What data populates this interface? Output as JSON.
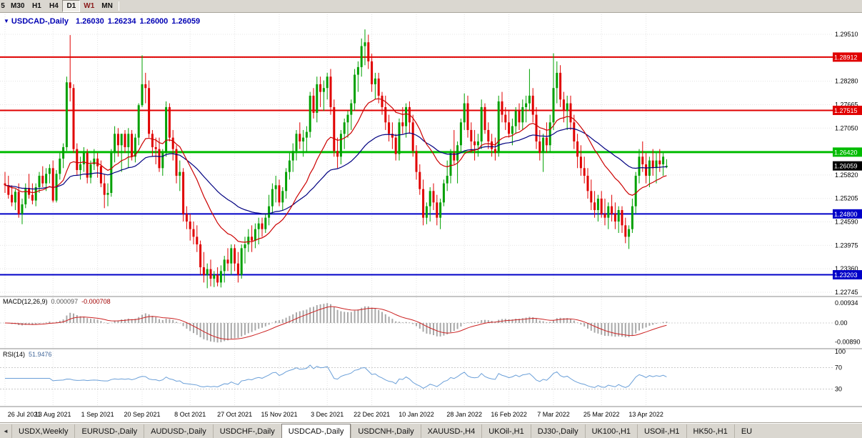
{
  "toolbar": {
    "timeframes": [
      {
        "label": "5",
        "active": false,
        "color": "#111111"
      },
      {
        "label": "M30",
        "active": false,
        "color": "#111111"
      },
      {
        "label": "H1",
        "active": false,
        "color": "#111111"
      },
      {
        "label": "H4",
        "active": false,
        "color": "#111111"
      },
      {
        "label": "D1",
        "active": true,
        "color": "#111111"
      },
      {
        "label": "W1",
        "active": false,
        "color": "#8b1a1a"
      },
      {
        "label": "MN",
        "active": false,
        "color": "#111111"
      }
    ]
  },
  "chart": {
    "header": {
      "marker": "▼",
      "title": "USDCAD-,Daily",
      "open": "1.26030",
      "high": "1.26234",
      "low": "1.26000",
      "close": "1.26059"
    }
  },
  "chart_data": {
    "type": "candlestick",
    "symbol": "USDCAD",
    "timeframe": "Daily",
    "title": "USDCAD-,Daily",
    "bull_color": "#00a000",
    "bear_color": "#e00000",
    "ma_fast_period": 20,
    "ma_slow_period": 50,
    "ma_fast_color": "#cc0000",
    "ma_slow_color": "#000080",
    "grid_color": "#e4e4e4",
    "price_axis_labels": [
      "1.29510",
      "1.28895",
      "1.28280",
      "1.27665",
      "1.27050",
      "1.26435",
      "1.25820",
      "1.25205",
      "1.24590",
      "1.23975",
      "1.23360",
      "1.22745"
    ],
    "price_axis_values": [
      1.2951,
      1.28895,
      1.2828,
      1.27665,
      1.2705,
      1.26435,
      1.2582,
      1.25205,
      1.2459,
      1.23975,
      1.2336,
      1.22745
    ],
    "hlines": [
      {
        "price": 1.28912,
        "label": "1.28912",
        "color": "#e00000",
        "width": 2
      },
      {
        "price": 1.27515,
        "label": "1.27515",
        "color": "#e00000",
        "width": 2
      },
      {
        "price": 1.2642,
        "label": "1.26420",
        "color": "#00bb00",
        "width": 3
      },
      {
        "price": 1.248,
        "label": "1.24800",
        "color": "#0000c8",
        "width": 2
      },
      {
        "price": 1.23203,
        "label": "1.23203",
        "color": "#0000c8",
        "width": 2
      }
    ],
    "current_price": {
      "price": 1.26059,
      "label": "1.26059",
      "bg": "#000000"
    },
    "date_labels": [
      {
        "text": "26 Jul 2021",
        "i": 0
      },
      {
        "text": "13 Aug 2021",
        "i": 14
      },
      {
        "text": "1 Sep 2021",
        "i": 27
      },
      {
        "text": "20 Sep 2021",
        "i": 40
      },
      {
        "text": "8 Oct 2021",
        "i": 54
      },
      {
        "text": "27 Oct 2021",
        "i": 67
      },
      {
        "text": "15 Nov 2021",
        "i": 80
      },
      {
        "text": "3 Dec 2021",
        "i": 94
      },
      {
        "text": "22 Dec 2021",
        "i": 107
      },
      {
        "text": "10 Jan 2022",
        "i": 120
      },
      {
        "text": "28 Jan 2022",
        "i": 134
      },
      {
        "text": "16 Feb 2022",
        "i": 147
      },
      {
        "text": "7 Mar 2022",
        "i": 160
      },
      {
        "text": "25 Mar 2022",
        "i": 174
      },
      {
        "text": "13 Apr 2022",
        "i": 187
      }
    ],
    "macd": {
      "label": "MACD(12,26,9)",
      "value_main": "0.000097",
      "value_signal": "-0.000708",
      "params": [
        12,
        26,
        9
      ],
      "axis_labels": [
        "0.00934",
        "0.00",
        "-0.00890"
      ],
      "axis_values": [
        0.00934,
        0,
        -0.0089
      ],
      "hist_color": "#a8a8a8",
      "signal_color": "#cc2222"
    },
    "rsi": {
      "label": "RSI(14)",
      "value": "51.9476",
      "period": 14,
      "levels": [
        70,
        30
      ],
      "axis_labels": [
        "100",
        "70",
        "30"
      ],
      "axis_values": [
        100,
        70,
        30
      ],
      "line_color": "#6a9fd8"
    },
    "candles": [
      [
        1.256,
        1.259,
        1.2535,
        1.2555
      ],
      [
        1.2555,
        1.258,
        1.252,
        1.253
      ],
      [
        1.253,
        1.2555,
        1.25,
        1.251
      ],
      [
        1.251,
        1.2545,
        1.249,
        1.2538
      ],
      [
        1.2538,
        1.256,
        1.247,
        1.248
      ],
      [
        1.248,
        1.252,
        1.2453,
        1.2505
      ],
      [
        1.2505,
        1.256,
        1.2495,
        1.2548
      ],
      [
        1.2548,
        1.2585,
        1.252,
        1.253
      ],
      [
        1.253,
        1.256,
        1.2505,
        1.2515
      ],
      [
        1.2515,
        1.256,
        1.25,
        1.255
      ],
      [
        1.255,
        1.259,
        1.2535,
        1.258
      ],
      [
        1.258,
        1.2605,
        1.255,
        1.256
      ],
      [
        1.256,
        1.26,
        1.254,
        1.2585
      ],
      [
        1.2585,
        1.261,
        1.256,
        1.26
      ],
      [
        1.26,
        1.262,
        1.251,
        1.2515
      ],
      [
        1.2515,
        1.2595,
        1.251,
        1.2585
      ],
      [
        1.2585,
        1.264,
        1.257,
        1.2625
      ],
      [
        1.2625,
        1.2665,
        1.26,
        1.2655
      ],
      [
        1.2655,
        1.284,
        1.2645,
        1.2825
      ],
      [
        1.2825,
        1.2949,
        1.2775,
        1.281
      ],
      [
        1.281,
        1.282,
        1.264,
        1.265
      ],
      [
        1.265,
        1.2665,
        1.258,
        1.2595
      ],
      [
        1.2595,
        1.263,
        1.257,
        1.261
      ],
      [
        1.261,
        1.2655,
        1.259,
        1.264
      ],
      [
        1.264,
        1.265,
        1.256,
        1.2575
      ],
      [
        1.2575,
        1.262,
        1.256,
        1.261
      ],
      [
        1.261,
        1.265,
        1.2595,
        1.2625
      ],
      [
        1.2625,
        1.264,
        1.2575,
        1.2605
      ],
      [
        1.2605,
        1.262,
        1.255,
        1.256
      ],
      [
        1.256,
        1.2585,
        1.2495,
        1.253
      ],
      [
        1.253,
        1.256,
        1.25,
        1.2535
      ],
      [
        1.2535,
        1.265,
        1.2525,
        1.264
      ],
      [
        1.264,
        1.271,
        1.2615,
        1.269
      ],
      [
        1.269,
        1.2705,
        1.263,
        1.266
      ],
      [
        1.266,
        1.269,
        1.259,
        1.269
      ],
      [
        1.269,
        1.27,
        1.264,
        1.2655
      ],
      [
        1.2655,
        1.2705,
        1.26,
        1.269
      ],
      [
        1.269,
        1.27,
        1.262,
        1.263
      ],
      [
        1.263,
        1.269,
        1.2615,
        1.268
      ],
      [
        1.268,
        1.277,
        1.266,
        1.2765
      ],
      [
        1.2765,
        1.2896,
        1.276,
        1.282
      ],
      [
        1.282,
        1.285,
        1.277,
        1.281
      ],
      [
        1.281,
        1.283,
        1.268,
        1.269
      ],
      [
        1.269,
        1.27,
        1.263,
        1.2655
      ],
      [
        1.2655,
        1.268,
        1.261,
        1.265
      ],
      [
        1.265,
        1.268,
        1.259,
        1.26
      ],
      [
        1.26,
        1.265,
        1.258,
        1.264
      ],
      [
        1.264,
        1.2775,
        1.263,
        1.276
      ],
      [
        1.276,
        1.277,
        1.267,
        1.268
      ],
      [
        1.268,
        1.27,
        1.262,
        1.265
      ],
      [
        1.265,
        1.266,
        1.256,
        1.258
      ],
      [
        1.258,
        1.262,
        1.254,
        1.259
      ],
      [
        1.259,
        1.26,
        1.246,
        1.248
      ],
      [
        1.248,
        1.25,
        1.244,
        1.246
      ],
      [
        1.246,
        1.248,
        1.241,
        1.244
      ],
      [
        1.244,
        1.246,
        1.24,
        1.242
      ],
      [
        1.242,
        1.245,
        1.238,
        1.24
      ],
      [
        1.24,
        1.241,
        1.232,
        1.234
      ],
      [
        1.234,
        1.238,
        1.23,
        1.232
      ],
      [
        1.232,
        1.235,
        1.2285,
        1.2335
      ],
      [
        1.2335,
        1.236,
        1.229,
        1.231
      ],
      [
        1.231,
        1.233,
        1.2288,
        1.232
      ],
      [
        1.232,
        1.234,
        1.229,
        1.23
      ],
      [
        1.23,
        1.2345,
        1.2287,
        1.233
      ],
      [
        1.233,
        1.237,
        1.23,
        1.236
      ],
      [
        1.236,
        1.239,
        1.233,
        1.235
      ],
      [
        1.235,
        1.24,
        1.232,
        1.239
      ],
      [
        1.239,
        1.24,
        1.233,
        1.235
      ],
      [
        1.235,
        1.238,
        1.23,
        1.232
      ],
      [
        1.232,
        1.24,
        1.231,
        1.239
      ],
      [
        1.239,
        1.242,
        1.235,
        1.24
      ],
      [
        1.24,
        1.244,
        1.238,
        1.242
      ],
      [
        1.242,
        1.245,
        1.238,
        1.241
      ],
      [
        1.241,
        1.2455,
        1.239,
        1.244
      ],
      [
        1.244,
        1.247,
        1.24,
        1.2455
      ],
      [
        1.2455,
        1.247,
        1.242,
        1.244
      ],
      [
        1.244,
        1.248,
        1.243,
        1.247
      ],
      [
        1.247,
        1.253,
        1.245,
        1.25
      ],
      [
        1.25,
        1.256,
        1.248,
        1.2545
      ],
      [
        1.2545,
        1.258,
        1.251,
        1.2555
      ],
      [
        1.2555,
        1.257,
        1.25,
        1.251
      ],
      [
        1.251,
        1.255,
        1.249,
        1.254
      ],
      [
        1.254,
        1.26,
        1.252,
        1.259
      ],
      [
        1.259,
        1.264,
        1.257,
        1.262
      ],
      [
        1.262,
        1.2665,
        1.259,
        1.2645
      ],
      [
        1.2645,
        1.27,
        1.262,
        1.269
      ],
      [
        1.269,
        1.272,
        1.265,
        1.267
      ],
      [
        1.267,
        1.27,
        1.263,
        1.268
      ],
      [
        1.268,
        1.271,
        1.264,
        1.2695
      ],
      [
        1.2695,
        1.28,
        1.268,
        1.279
      ],
      [
        1.279,
        1.281,
        1.273,
        1.2745
      ],
      [
        1.2745,
        1.284,
        1.272,
        1.282
      ],
      [
        1.282,
        1.284,
        1.276,
        1.28
      ],
      [
        1.28,
        1.283,
        1.275,
        1.281
      ],
      [
        1.281,
        1.285,
        1.278,
        1.284
      ],
      [
        1.284,
        1.286,
        1.274,
        1.276
      ],
      [
        1.276,
        1.278,
        1.263,
        1.2645
      ],
      [
        1.2645,
        1.268,
        1.26,
        1.263
      ],
      [
        1.263,
        1.27,
        1.261,
        1.269
      ],
      [
        1.269,
        1.273,
        1.265,
        1.272
      ],
      [
        1.272,
        1.275,
        1.268,
        1.274
      ],
      [
        1.274,
        1.278,
        1.27,
        1.277
      ],
      [
        1.277,
        1.286,
        1.275,
        1.2845
      ],
      [
        1.2845,
        1.288,
        1.28,
        1.2865
      ],
      [
        1.2865,
        1.294,
        1.284,
        1.292
      ],
      [
        1.292,
        1.2964,
        1.287,
        1.293
      ],
      [
        1.293,
        1.295,
        1.286,
        1.288
      ],
      [
        1.288,
        1.29,
        1.28,
        1.282
      ],
      [
        1.282,
        1.285,
        1.278,
        1.2835
      ],
      [
        1.2835,
        1.285,
        1.277,
        1.279
      ],
      [
        1.279,
        1.28,
        1.274,
        1.276
      ],
      [
        1.276,
        1.279,
        1.27,
        1.272
      ],
      [
        1.272,
        1.274,
        1.267,
        1.269
      ],
      [
        1.269,
        1.272,
        1.265,
        1.268
      ],
      [
        1.268,
        1.269,
        1.262,
        1.2637
      ],
      [
        1.2637,
        1.273,
        1.262,
        1.272
      ],
      [
        1.272,
        1.276,
        1.269,
        1.271
      ],
      [
        1.271,
        1.277,
        1.268,
        1.276
      ],
      [
        1.276,
        1.2775,
        1.269,
        1.272
      ],
      [
        1.272,
        1.274,
        1.263,
        1.2645
      ],
      [
        1.2645,
        1.266,
        1.257,
        1.259
      ],
      [
        1.259,
        1.261,
        1.253,
        1.2545
      ],
      [
        1.2545,
        1.257,
        1.245,
        1.247
      ],
      [
        1.247,
        1.251,
        1.2453,
        1.25
      ],
      [
        1.25,
        1.255,
        1.246,
        1.254
      ],
      [
        1.254,
        1.256,
        1.249,
        1.251
      ],
      [
        1.251,
        1.253,
        1.245,
        1.247
      ],
      [
        1.247,
        1.252,
        1.244,
        1.251
      ],
      [
        1.251,
        1.257,
        1.25,
        1.256
      ],
      [
        1.256,
        1.262,
        1.254,
        1.258
      ],
      [
        1.258,
        1.265,
        1.256,
        1.264
      ],
      [
        1.264,
        1.27,
        1.261,
        1.262
      ],
      [
        1.262,
        1.267,
        1.256,
        1.266
      ],
      [
        1.266,
        1.273,
        1.264,
        1.272
      ],
      [
        1.272,
        1.2796,
        1.27,
        1.277
      ],
      [
        1.277,
        1.279,
        1.268,
        1.27
      ],
      [
        1.27,
        1.272,
        1.264,
        1.267
      ],
      [
        1.267,
        1.27,
        1.262,
        1.266
      ],
      [
        1.266,
        1.269,
        1.263,
        1.267
      ],
      [
        1.267,
        1.278,
        1.265,
        1.276
      ],
      [
        1.276,
        1.277,
        1.269,
        1.27
      ],
      [
        1.27,
        1.272,
        1.265,
        1.267
      ],
      [
        1.267,
        1.269,
        1.263,
        1.265
      ],
      [
        1.265,
        1.268,
        1.262,
        1.264
      ],
      [
        1.264,
        1.279,
        1.263,
        1.2775
      ],
      [
        1.2775,
        1.28,
        1.272,
        1.274
      ],
      [
        1.274,
        1.276,
        1.27,
        1.272
      ],
      [
        1.272,
        1.275,
        1.268,
        1.269
      ],
      [
        1.269,
        1.273,
        1.266,
        1.271
      ],
      [
        1.271,
        1.276,
        1.269,
        1.275
      ],
      [
        1.275,
        1.277,
        1.27,
        1.272
      ],
      [
        1.272,
        1.278,
        1.27,
        1.276
      ],
      [
        1.276,
        1.279,
        1.272,
        1.277
      ],
      [
        1.277,
        1.286,
        1.275,
        1.279
      ],
      [
        1.279,
        1.281,
        1.272,
        1.274
      ],
      [
        1.274,
        1.276,
        1.265,
        1.267
      ],
      [
        1.267,
        1.27,
        1.262,
        1.264
      ],
      [
        1.264,
        1.269,
        1.259,
        1.268
      ],
      [
        1.268,
        1.272,
        1.264,
        1.266
      ],
      [
        1.266,
        1.274,
        1.264,
        1.272
      ],
      [
        1.272,
        1.2901,
        1.27,
        1.281
      ],
      [
        1.281,
        1.288,
        1.277,
        1.285
      ],
      [
        1.285,
        1.287,
        1.276,
        1.278
      ],
      [
        1.278,
        1.28,
        1.272,
        1.275
      ],
      [
        1.275,
        1.279,
        1.27,
        1.277
      ],
      [
        1.277,
        1.279,
        1.27,
        1.272
      ],
      [
        1.272,
        1.274,
        1.265,
        1.267
      ],
      [
        1.267,
        1.269,
        1.26,
        1.263
      ],
      [
        1.263,
        1.266,
        1.258,
        1.26
      ],
      [
        1.26,
        1.263,
        1.256,
        1.258
      ],
      [
        1.258,
        1.26,
        1.252,
        1.254
      ],
      [
        1.254,
        1.257,
        1.249,
        1.251
      ],
      [
        1.251,
        1.254,
        1.247,
        1.249
      ],
      [
        1.249,
        1.253,
        1.246,
        1.252
      ],
      [
        1.252,
        1.254,
        1.247,
        1.248
      ],
      [
        1.248,
        1.252,
        1.245,
        1.247
      ],
      [
        1.247,
        1.251,
        1.244,
        1.25
      ],
      [
        1.25,
        1.253,
        1.246,
        1.248
      ],
      [
        1.248,
        1.251,
        1.244,
        1.246
      ],
      [
        1.246,
        1.25,
        1.243,
        1.249
      ],
      [
        1.249,
        1.25,
        1.243,
        1.245
      ],
      [
        1.245,
        1.247,
        1.2403,
        1.242
      ],
      [
        1.242,
        1.245,
        1.2388,
        1.244
      ],
      [
        1.244,
        1.252,
        1.243,
        1.25
      ],
      [
        1.25,
        1.259,
        1.248,
        1.258
      ],
      [
        1.258,
        1.265,
        1.256,
        1.263
      ],
      [
        1.263,
        1.267,
        1.259,
        1.261
      ],
      [
        1.261,
        1.264,
        1.256,
        1.258
      ],
      [
        1.258,
        1.263,
        1.255,
        1.262
      ],
      [
        1.262,
        1.265,
        1.258,
        1.26
      ],
      [
        1.26,
        1.264,
        1.256,
        1.262
      ],
      [
        1.262,
        1.265,
        1.259,
        1.261
      ],
      [
        1.261,
        1.264,
        1.258,
        1.263
      ],
      [
        1.2603,
        1.26234,
        1.26,
        1.26059
      ]
    ]
  },
  "tabbar": {
    "scroll_left": "◄",
    "active_index": 4,
    "tabs": [
      {
        "label": "USDX,Weekly"
      },
      {
        "label": "EURUSD-,Daily"
      },
      {
        "label": "AUDUSD-,Daily"
      },
      {
        "label": "USDCHF-,Daily"
      },
      {
        "label": "USDCAD-,Daily"
      },
      {
        "label": "USDCNH-,Daily"
      },
      {
        "label": "XAUUSD-,H4"
      },
      {
        "label": "UKOil-,H1"
      },
      {
        "label": "DJ30-,Daily"
      },
      {
        "label": "UK100-,H1"
      },
      {
        "label": "USOil-,H1"
      },
      {
        "label": "HK50-,H1"
      },
      {
        "label": "EU"
      }
    ]
  }
}
